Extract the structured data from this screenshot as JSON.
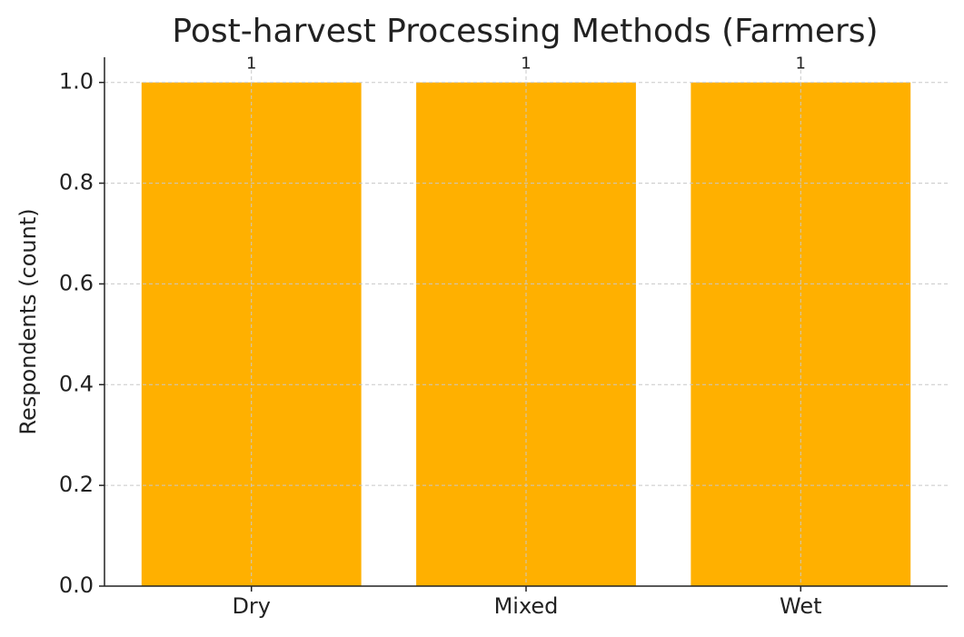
{
  "chart_data": {
    "type": "bar",
    "title": "Post-harvest Processing Methods (Farmers)",
    "y_label": "Respondents (count)",
    "categories": [
      "Dry",
      "Mixed",
      "Wet"
    ],
    "values": [
      1,
      1,
      1
    ],
    "color": "#ffb000",
    "ylim": [
      0,
      1.05
    ],
    "yticks": [
      {
        "value": 0,
        "label": "0.0"
      },
      {
        "value": 0.2,
        "label": "0.2"
      },
      {
        "value": 0.4,
        "label": "0.4"
      },
      {
        "value": 0.6,
        "label": "0.6"
      },
      {
        "value": 0.8,
        "label": "0.8"
      },
      {
        "value": 1,
        "label": "1.0"
      }
    ],
    "grid": true
  }
}
